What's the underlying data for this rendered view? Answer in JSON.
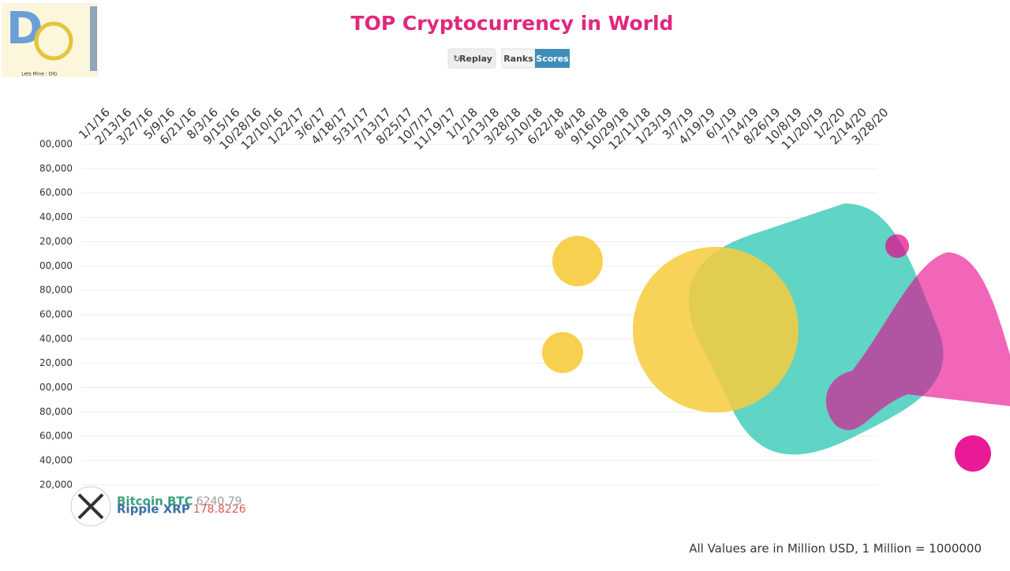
{
  "header": {
    "title": "TOP Cryptocurrency in World"
  },
  "controls": {
    "replay": "Replay",
    "ranks": "Ranks",
    "scores": "Scores"
  },
  "logo": {
    "tagline": "Lets Mine : DIG"
  },
  "dates": [
    "1/1/16",
    "2/13/16",
    "3/27/16",
    "5/9/16",
    "6/21/16",
    "8/3/16",
    "9/15/16",
    "10/28/16",
    "12/10/16",
    "1/22/17",
    "3/6/17",
    "4/18/17",
    "5/31/17",
    "7/13/17",
    "8/25/17",
    "10/7/17",
    "11/19/17",
    "1/1/18",
    "2/13/18",
    "3/28/18",
    "5/10/18",
    "6/22/18",
    "8/4/18",
    "9/16/18",
    "10/29/18",
    "12/11/18",
    "1/23/19",
    "3/7/19",
    "4/19/19",
    "6/1/19",
    "7/14/19",
    "8/26/19",
    "10/8/19",
    "11/20/19",
    "1/2/20",
    "2/14/20",
    "3/28/20"
  ],
  "value_labels": [
    "00,000",
    "80,000",
    "60,000",
    "40,000",
    "20,000",
    "00,000",
    "80,000",
    "60,000",
    "40,000",
    "20,000",
    "00,000",
    "80,000",
    "60,000",
    "40,000",
    "20,000"
  ],
  "entries": [
    {
      "name": "Bitcoin BTC",
      "value": "6240.79"
    },
    {
      "name": "Ripple XRP",
      "value": "178.8226"
    }
  ],
  "footer": {
    "note": "All Values are in Million USD, 1 Million = 1000000"
  }
}
